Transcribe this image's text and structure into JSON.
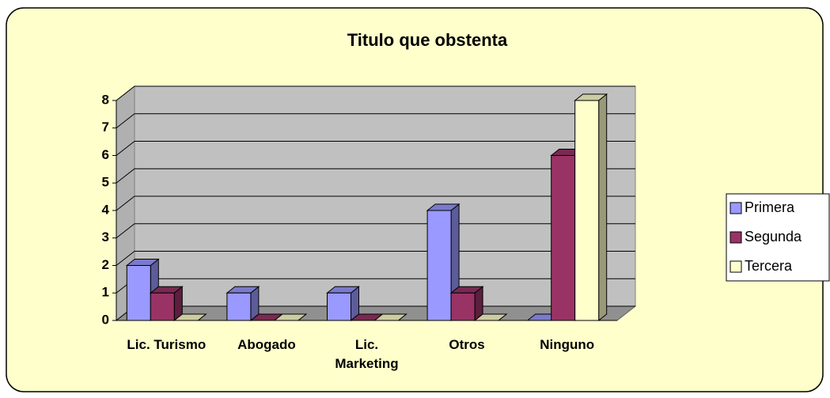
{
  "chart_data": {
    "type": "bar3d",
    "title": "Titulo que obstenta",
    "categories": [
      "Lic. Turismo",
      "Abogado",
      "Lic. Marketing",
      "Otros",
      "Ninguno"
    ],
    "series": [
      {
        "name": "Primera",
        "color": "#9999ff",
        "values": [
          2,
          1,
          1,
          4,
          0
        ]
      },
      {
        "name": "Segunda",
        "color": "#993366",
        "values": [
          1,
          0,
          0,
          1,
          6
        ]
      },
      {
        "name": "Tercera",
        "color": "#ffffcc",
        "values": [
          0,
          0,
          0,
          0,
          8
        ]
      }
    ],
    "ylim": [
      0,
      8
    ],
    "yticks": [
      0,
      1,
      2,
      3,
      4,
      5,
      6,
      7,
      8
    ],
    "grid": true,
    "legend": "right"
  }
}
